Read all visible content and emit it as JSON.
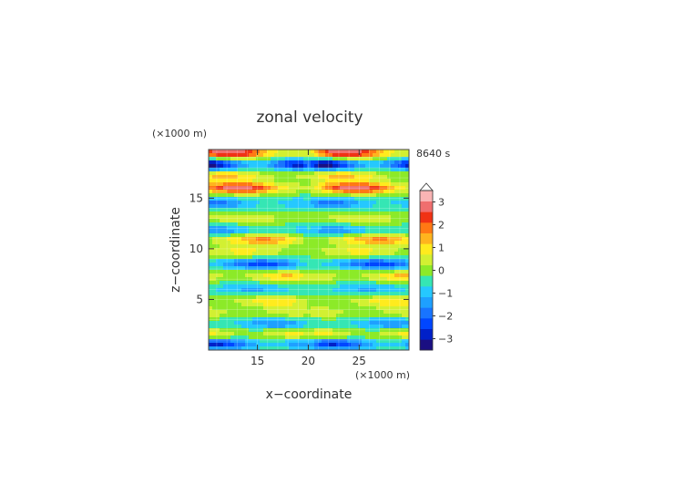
{
  "chart_data": {
    "type": "heatmap",
    "title": "zonal velocity",
    "xlabel": "x−coordinate",
    "ylabel": "z−coordinate",
    "x_unit": "(×1000 m)",
    "y_unit": "(×1000 m)",
    "time_label": "8640 s",
    "xlim": [
      10.2,
      29.9
    ],
    "ylim": [
      0,
      19.8
    ],
    "x_ticks": [
      15,
      20,
      25
    ],
    "y_ticks": [
      5,
      10,
      15
    ],
    "grid": true,
    "colorbar": {
      "location": "right",
      "tick_values": [
        3,
        2,
        1,
        0,
        -1,
        -2,
        -3
      ],
      "tick_labels": [
        "3",
        "2",
        "1",
        "0",
        "−1",
        "−2",
        "−3"
      ],
      "levels": [
        -3.5,
        -3.0,
        -2.5,
        -2.0,
        -1.5,
        -1.0,
        -0.5,
        0.0,
        0.5,
        1.0,
        1.5,
        2.0,
        2.5,
        3.0,
        3.5
      ],
      "colors": [
        "#1a0f82",
        "#0020c8",
        "#0046ff",
        "#1874ff",
        "#1ea0ff",
        "#25c8ff",
        "#35e6b4",
        "#8cea28",
        "#d2f032",
        "#ffeb1e",
        "#ffb41e",
        "#ff7814",
        "#f03214",
        "#f06e6e",
        "#fab4b4"
      ],
      "over_color": "#ffffff",
      "extend": "max"
    },
    "bands": [
      {
        "z": 19.5,
        "amp": 3.0,
        "ph": 0.0
      },
      {
        "z": 18.3,
        "amp": -3.2,
        "ph": 2.0
      },
      {
        "z": 17.2,
        "amp": 1.4,
        "ph": 1.0
      },
      {
        "z": 16.0,
        "amp": 2.8,
        "ph": 0.5
      },
      {
        "z": 14.5,
        "amp": -1.5,
        "ph": 2.5
      },
      {
        "z": 13.0,
        "amp": 0.8,
        "ph": 1.2
      },
      {
        "z": 11.8,
        "amp": -1.2,
        "ph": 3.0
      },
      {
        "z": 10.9,
        "amp": 1.8,
        "ph": 0.8
      },
      {
        "z": 9.7,
        "amp": 1.0,
        "ph": 2.2
      },
      {
        "z": 8.5,
        "amp": -1.9,
        "ph": 1.5
      },
      {
        "z": 7.3,
        "amp": 1.4,
        "ph": 0.3
      },
      {
        "z": 6.0,
        "amp": -0.9,
        "ph": 2.8
      },
      {
        "z": 4.8,
        "amp": 1.2,
        "ph": 1.8
      },
      {
        "z": 3.7,
        "amp": 0.9,
        "ph": 0.6
      },
      {
        "z": 2.6,
        "amp": -1.3,
        "ph": 2.4
      },
      {
        "z": 1.6,
        "amp": 1.3,
        "ph": 1.1
      },
      {
        "z": 0.6,
        "amp": -2.2,
        "ph": 0.2
      }
    ]
  }
}
